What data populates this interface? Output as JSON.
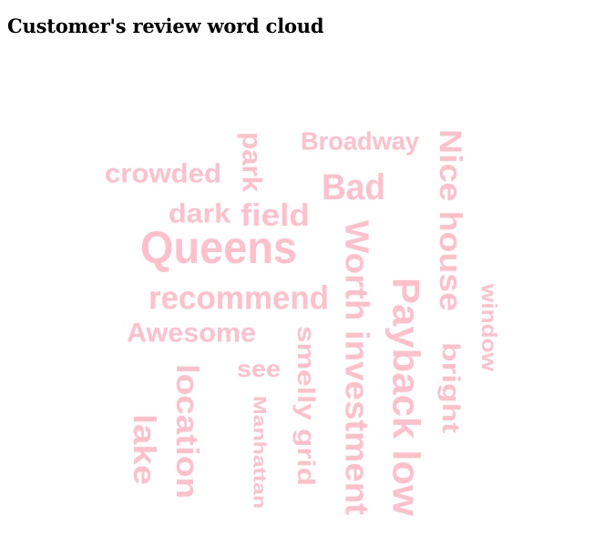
{
  "page": {
    "title": "Customer's review word cloud"
  },
  "chart_data": {
    "type": "wordcloud",
    "color": "#ffc0cb",
    "words": [
      {
        "text": "Queens",
        "weight": 50,
        "orientation": "horizontal"
      },
      {
        "text": "Payback low",
        "weight": 42,
        "orientation": "vertical"
      },
      {
        "text": "Worth investment",
        "weight": 36,
        "orientation": "vertical"
      },
      {
        "text": "Nice house",
        "weight": 34,
        "orientation": "vertical"
      },
      {
        "text": "Bad",
        "weight": 40,
        "orientation": "horizontal"
      },
      {
        "text": "recommend",
        "weight": 36,
        "orientation": "horizontal"
      },
      {
        "text": "location",
        "weight": 34,
        "orientation": "vertical"
      },
      {
        "text": "lake",
        "weight": 34,
        "orientation": "vertical"
      },
      {
        "text": "field",
        "weight": 34,
        "orientation": "horizontal"
      },
      {
        "text": "Awesome",
        "weight": 30,
        "orientation": "horizontal"
      },
      {
        "text": "crowded",
        "weight": 30,
        "orientation": "horizontal"
      },
      {
        "text": "dark",
        "weight": 30,
        "orientation": "horizontal"
      },
      {
        "text": "park",
        "weight": 30,
        "orientation": "vertical"
      },
      {
        "text": "Broadway",
        "weight": 28,
        "orientation": "horizontal"
      },
      {
        "text": "smelly grid",
        "weight": 27,
        "orientation": "vertical"
      },
      {
        "text": "bright",
        "weight": 27,
        "orientation": "vertical"
      },
      {
        "text": "see",
        "weight": 26,
        "orientation": "horizontal"
      },
      {
        "text": "window",
        "weight": 23,
        "orientation": "vertical"
      },
      {
        "text": "Manhattan",
        "weight": 19,
        "orientation": "vertical"
      }
    ]
  }
}
